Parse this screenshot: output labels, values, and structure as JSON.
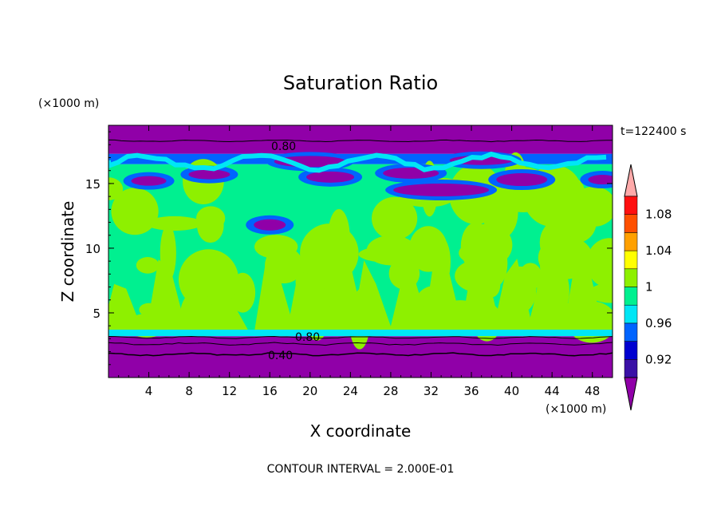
{
  "chart_data": {
    "type": "heatmap",
    "title": "Saturation Ratio",
    "xlabel": "X coordinate",
    "ylabel": "Z coordinate",
    "x_unit": "(×1000 m)",
    "z_unit": "(×1000 m)",
    "time_label": "t=122400 s",
    "footer": "CONTOUR INTERVAL = 2.000E-01",
    "xlim": [
      0,
      50
    ],
    "ylim": [
      0,
      19.5
    ],
    "x_ticks": [
      "4",
      "8",
      "12",
      "16",
      "20",
      "24",
      "28",
      "32",
      "36",
      "40",
      "44",
      "48"
    ],
    "y_ticks": [
      "5",
      "10",
      "15"
    ],
    "colorbar": {
      "levels": [
        0.9,
        0.92,
        0.94,
        0.96,
        0.98,
        1.0,
        1.02,
        1.04,
        1.06,
        1.08,
        1.1
      ],
      "labels": [
        "0.92",
        "0.96",
        "1",
        "1.04",
        "1.08"
      ],
      "colors": [
        "#9000a8",
        "#3a11a6",
        "#0000d0",
        "#0064ff",
        "#00e6f5",
        "#00f090",
        "#8ef000",
        "#ffff00",
        "#ffa000",
        "#ff5000",
        "#ff1010",
        "#ffaaaa"
      ]
    },
    "contour_labels": [
      "0.80",
      "0.80",
      "0.40"
    ],
    "bands": [
      {
        "z_from": 0,
        "z_to": 3.2,
        "value": "<0.92",
        "color": "#9000a8"
      },
      {
        "z_from": 3.2,
        "z_to": 3.7,
        "value": "0.96-0.98",
        "color": "#00e6f5"
      },
      {
        "z_from": 3.7,
        "z_to": 16.5,
        "value": "0.98-1.02",
        "color": "#00f090"
      },
      {
        "z_from": 16.5,
        "z_to": 17.3,
        "value": "0.92-0.98",
        "color": "#0064ff"
      },
      {
        "z_from": 17.3,
        "z_to": 19.5,
        "value": "<0.92",
        "color": "#9000a8"
      }
    ]
  }
}
